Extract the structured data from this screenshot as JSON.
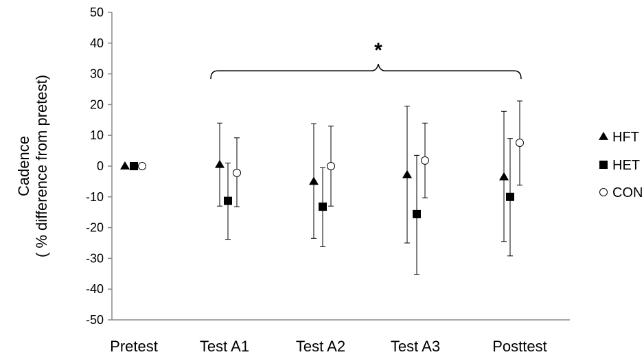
{
  "chart_data": {
    "type": "scatter",
    "title": "",
    "xlabel": "",
    "ylabel_lines": [
      "Cadence",
      "( % difference from pretest)"
    ],
    "categories": [
      "Pretest",
      "Test A1",
      "Test A2",
      "Test A3",
      "Posttest"
    ],
    "ylim": [
      -50,
      50
    ],
    "yticks": [
      50,
      40,
      30,
      20,
      10,
      0,
      -10,
      -20,
      -30,
      -40,
      -50
    ],
    "grid": false,
    "legend_position": "right",
    "series": [
      {
        "name": "HFT",
        "marker": "triangle",
        "color": "#000000",
        "values": [
          0,
          0.5,
          -5,
          -2.8,
          -3.5
        ],
        "error_low": [
          0,
          -13,
          -23.5,
          -25,
          -24.5
        ],
        "error_high": [
          0,
          14,
          13.8,
          19.5,
          17.8
        ]
      },
      {
        "name": "HET",
        "marker": "square",
        "color": "#000000",
        "values": [
          0,
          -11.3,
          -13.2,
          -15.6,
          -10
        ],
        "error_low": [
          0,
          -23.8,
          -26.2,
          -35.2,
          -29.2
        ],
        "error_high": [
          0,
          1,
          -0.5,
          3.5,
          9
        ]
      },
      {
        "name": "CON",
        "marker": "circle-open",
        "color": "#000000",
        "values": [
          0,
          -2.2,
          0,
          1.8,
          7.6
        ],
        "error_low": [
          0,
          -13.2,
          -13,
          -10.3,
          -6.2
        ],
        "error_high": [
          0,
          9.2,
          13,
          14,
          21.2
        ]
      }
    ],
    "annotations": [
      {
        "text": "*",
        "from_category": "Test A1",
        "to_category": "Posttest",
        "bracket_y": 31
      }
    ]
  }
}
